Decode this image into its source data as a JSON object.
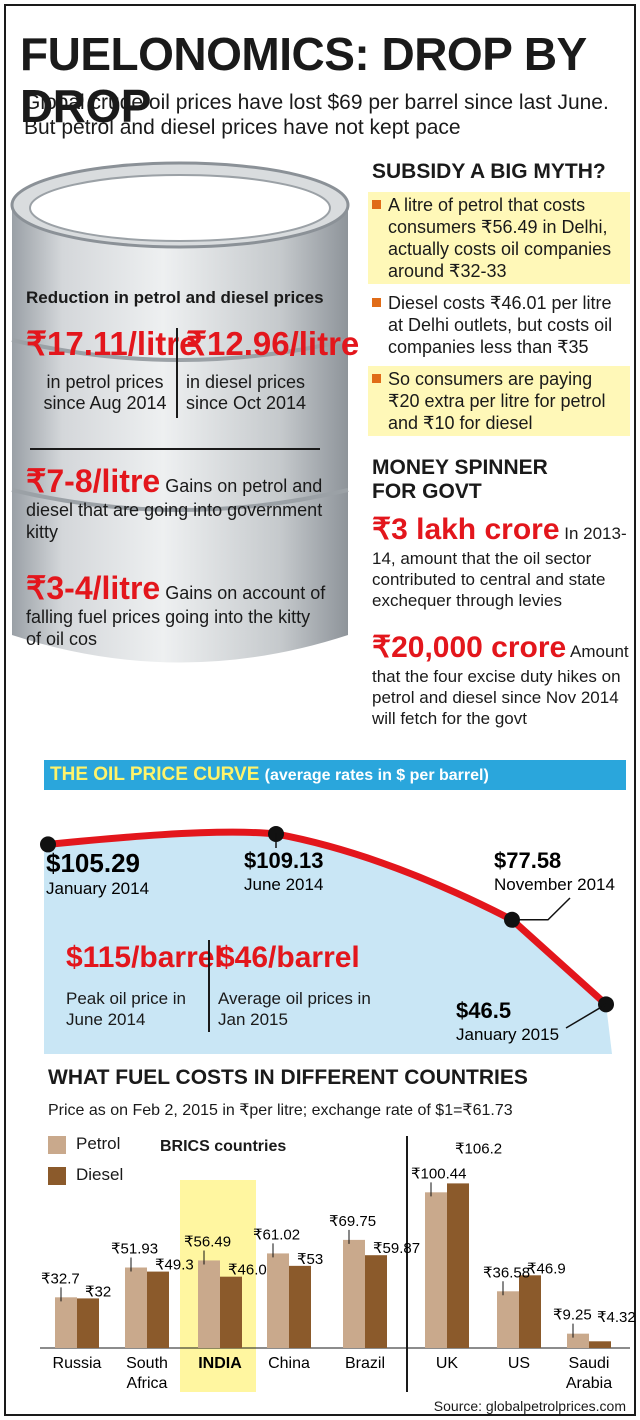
{
  "header": {
    "title": "FUELONOMICS: DROP BY DROP",
    "intro": "Global crude oil prices have lost $69 per barrel since last June. But petrol and diesel prices have not kept pace"
  },
  "barrel": {
    "heading": "Reduction in petrol and diesel prices",
    "petrol_value": "₹17.11/litre",
    "petrol_desc": "in petrol prices since Aug 2014",
    "diesel_value": "₹12.96/litre",
    "diesel_desc": "in diesel prices since Oct 2014",
    "govt_value": "₹7-8/litre",
    "govt_desc": "Gains on petrol and diesel that are going into government kitty",
    "oilcos_value": "₹3-4/litre",
    "oilcos_desc": "Gains on account of falling fuel prices going into the kitty of oil cos"
  },
  "subsidy": {
    "heading": "SUBSIDY A BIG MYTH?",
    "bullets": [
      "A litre of petrol that costs consumers ₹56.49 in Delhi, actually costs oil companies around ₹32-33",
      "Diesel costs ₹46.01 per litre at Delhi outlets, but costs oil companies less than ₹35",
      "So consumers are paying ₹20 extra per litre for petrol and ₹10 for diesel"
    ]
  },
  "money": {
    "heading_line1": "MONEY SPINNER",
    "heading_line2": "FOR GOVT",
    "item1_value": "₹3 lakh crore",
    "item1_desc": "In 2013-14, amount that the oil sector contributed to central and state exchequer through levies",
    "item2_value": "₹20,000 crore",
    "item2_desc": "Amount that the four excise duty hikes on petrol and diesel since Nov 2014 will fetch for the govt"
  },
  "curve": {
    "title": "THE OIL PRICE CURVE",
    "subtitle": "(average rates in $ per barrel)",
    "peak_value": "$115/barrel",
    "peak_desc": "Peak oil price in June 2014",
    "avg_value": "$46/barrel",
    "avg_desc": "Average oil prices in Jan 2015"
  },
  "countries": {
    "heading": "WHAT FUEL COSTS IN DIFFERENT COUNTRIES",
    "note": "Price as on Feb 2, 2015 in ₹per litre; exchange rate of $1=₹61.73",
    "brics_label": "BRICS countries",
    "source": "Source: globalpetrolprices.com"
  },
  "colors": {
    "red": "#e3161c",
    "curve_fill": "#c9e6f5",
    "header_band": "#2aa6dc",
    "petrol": "#c9a98c",
    "diesel": "#8b5a2b",
    "highlight": "#fff6a0"
  },
  "chart_data": [
    {
      "type": "line",
      "title": "THE OIL PRICE CURVE",
      "ylabel": "(average rates in $ per barrel)",
      "points": [
        {
          "x": "January 2014",
          "y": 105.29,
          "label": "$105.29"
        },
        {
          "x": "June 2014",
          "y": 109.13,
          "label": "$109.13"
        },
        {
          "x": "November 2014",
          "y": 77.58,
          "label": "$77.58"
        },
        {
          "x": "January 2015",
          "y": 46.5,
          "label": "$46.5"
        }
      ],
      "ylim": [
        40,
        115
      ]
    },
    {
      "type": "bar",
      "title": "WHAT FUEL COSTS IN DIFFERENT COUNTRIES",
      "categories": [
        "Russia",
        "South Africa",
        "INDIA",
        "China",
        "Brazil",
        "UK",
        "US",
        "Saudi Arabia"
      ],
      "series": [
        {
          "name": "Petrol",
          "values": [
            32.7,
            51.93,
            56.49,
            61.02,
            69.75,
            100.44,
            36.58,
            9.25
          ],
          "labels": [
            "₹32.7",
            "₹51.93",
            "₹56.49",
            "₹61.02",
            "₹69.75",
            "₹100.44",
            "₹36.58",
            "₹9.25"
          ]
        },
        {
          "name": "Diesel",
          "values": [
            32,
            49.3,
            46.01,
            53,
            59.87,
            106.2,
            46.9,
            4.32
          ],
          "labels": [
            "₹32",
            "₹49.3",
            "₹46.01",
            "₹53",
            "₹59.87",
            "₹106.2",
            "₹46.9",
            "₹4.32"
          ]
        }
      ],
      "group_label": "BRICS countries",
      "highlight": "INDIA"
    }
  ]
}
